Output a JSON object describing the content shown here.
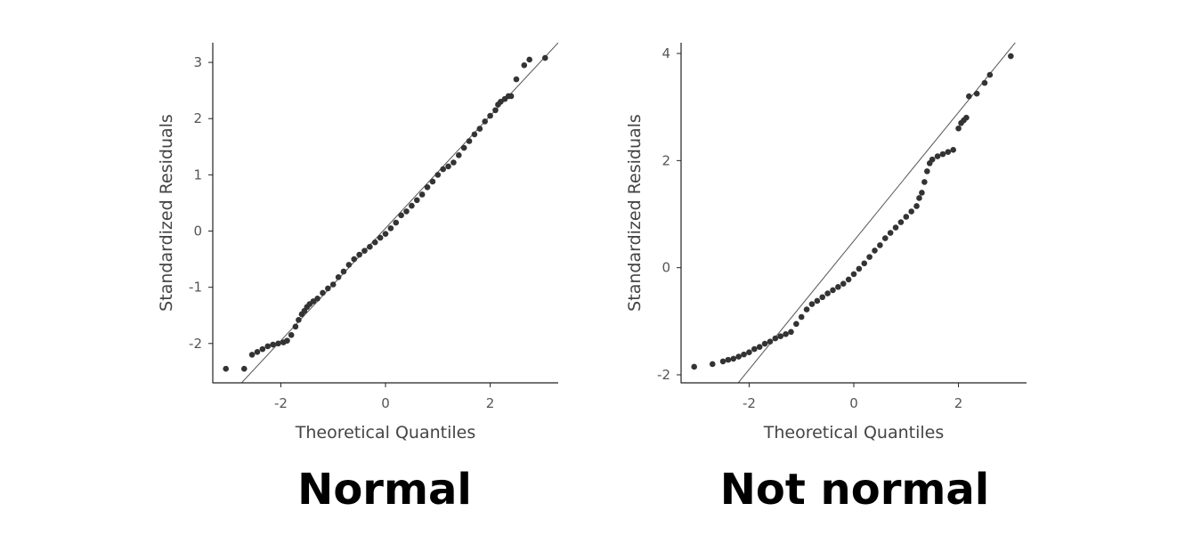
{
  "colors": {
    "points": "#333333",
    "reference_line": "#555555",
    "axis": "#222222",
    "tick_label": "#555555",
    "axis_label": "#444444",
    "caption": "#000000"
  },
  "chart_data": [
    {
      "type": "scatter",
      "name": "qq-normal",
      "caption": "Normal",
      "xlabel": "Theoretical Quantiles",
      "ylabel": "Standardized Residuals",
      "xlim": [
        -3.3,
        3.3
      ],
      "ylim": [
        -2.7,
        3.35
      ],
      "xticks": [
        -2,
        0,
        2
      ],
      "yticks": [
        -2,
        -1,
        0,
        1,
        2,
        3
      ],
      "reference_line": {
        "slope": 1.0,
        "intercept": 0.05
      },
      "grid": false,
      "legend": "none",
      "series": [
        {
          "x": [
            -3.05,
            -2.7,
            -2.55,
            -2.45,
            -2.35,
            -2.25,
            -2.15,
            -2.05,
            -1.95,
            -1.88,
            -1.8,
            -1.72,
            -1.66,
            -1.6,
            -1.55,
            -1.5,
            -1.45,
            -1.38,
            -1.3,
            -1.2,
            -1.1,
            -1.0,
            -0.9,
            -0.8,
            -0.7,
            -0.6,
            -0.5,
            -0.4,
            -0.3,
            -0.2,
            -0.1,
            0.0,
            0.1,
            0.2,
            0.3,
            0.4,
            0.5,
            0.6,
            0.7,
            0.8,
            0.9,
            1.0,
            1.1,
            1.2,
            1.3,
            1.4,
            1.5,
            1.6,
            1.7,
            1.8,
            1.9,
            2.0,
            2.1,
            2.15,
            2.2,
            2.28,
            2.35,
            2.4,
            2.5,
            2.65,
            2.75,
            3.05
          ],
          "y": [
            -2.45,
            -2.45,
            -2.2,
            -2.15,
            -2.1,
            -2.05,
            -2.02,
            -2.0,
            -1.98,
            -1.95,
            -1.85,
            -1.7,
            -1.58,
            -1.48,
            -1.42,
            -1.35,
            -1.3,
            -1.25,
            -1.2,
            -1.1,
            -1.02,
            -0.95,
            -0.82,
            -0.72,
            -0.6,
            -0.5,
            -0.42,
            -0.35,
            -0.28,
            -0.2,
            -0.12,
            -0.05,
            0.05,
            0.15,
            0.28,
            0.35,
            0.45,
            0.55,
            0.65,
            0.78,
            0.88,
            1.0,
            1.1,
            1.15,
            1.22,
            1.35,
            1.48,
            1.6,
            1.72,
            1.82,
            1.95,
            2.05,
            2.15,
            2.25,
            2.3,
            2.35,
            2.4,
            2.4,
            2.7,
            2.95,
            3.05,
            3.08
          ]
        }
      ]
    },
    {
      "type": "scatter",
      "name": "qq-not-normal",
      "caption": "Not normal",
      "xlabel": "Theoretical Quantiles",
      "ylabel": "Standardized Residuals",
      "xlim": [
        -3.3,
        3.3
      ],
      "ylim": [
        -2.15,
        4.2
      ],
      "xticks": [
        -2,
        0,
        2
      ],
      "yticks": [
        -2,
        0,
        2,
        4
      ],
      "reference_line": {
        "slope": 1.2,
        "intercept": 0.5
      },
      "grid": false,
      "legend": "none",
      "series": [
        {
          "x": [
            -3.05,
            -2.7,
            -2.5,
            -2.4,
            -2.3,
            -2.2,
            -2.1,
            -2.0,
            -1.9,
            -1.8,
            -1.7,
            -1.6,
            -1.5,
            -1.4,
            -1.3,
            -1.2,
            -1.1,
            -1.0,
            -0.9,
            -0.8,
            -0.7,
            -0.6,
            -0.5,
            -0.4,
            -0.3,
            -0.2,
            -0.1,
            0.0,
            0.1,
            0.2,
            0.3,
            0.4,
            0.5,
            0.6,
            0.7,
            0.8,
            0.9,
            1.0,
            1.1,
            1.2,
            1.25,
            1.3,
            1.35,
            1.4,
            1.45,
            1.5,
            1.6,
            1.7,
            1.8,
            1.9,
            2.0,
            2.05,
            2.1,
            2.15,
            2.2,
            2.35,
            2.5,
            2.6,
            3.0
          ],
          "y": [
            -1.85,
            -1.8,
            -1.75,
            -1.72,
            -1.7,
            -1.66,
            -1.62,
            -1.58,
            -1.52,
            -1.48,
            -1.42,
            -1.38,
            -1.32,
            -1.28,
            -1.24,
            -1.2,
            -1.05,
            -0.92,
            -0.78,
            -0.68,
            -0.62,
            -0.55,
            -0.48,
            -0.42,
            -0.36,
            -0.3,
            -0.22,
            -0.12,
            -0.02,
            0.08,
            0.2,
            0.32,
            0.42,
            0.55,
            0.65,
            0.75,
            0.85,
            0.95,
            1.05,
            1.15,
            1.3,
            1.4,
            1.6,
            1.8,
            1.95,
            2.02,
            2.08,
            2.12,
            2.16,
            2.2,
            2.6,
            2.7,
            2.75,
            2.8,
            3.2,
            3.25,
            3.45,
            3.6,
            3.95
          ]
        }
      ]
    }
  ]
}
